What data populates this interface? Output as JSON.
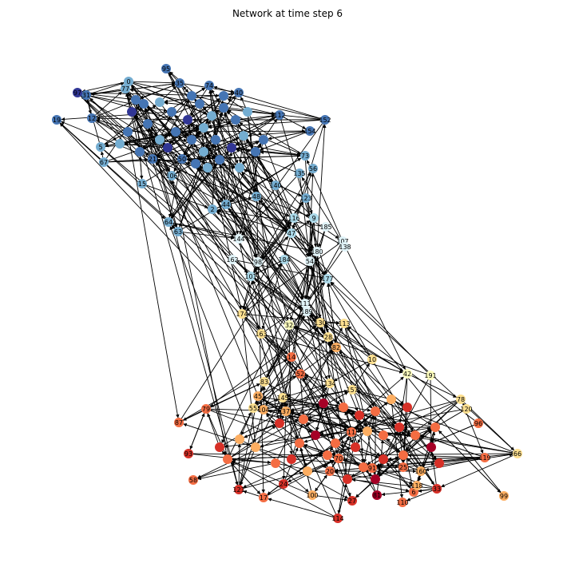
{
  "title": "Network at time step 6",
  "colors": {
    "edge": "#000000",
    "node_label": "#000000",
    "palette": [
      "#313695",
      "#4575b4",
      "#74add1",
      "#abd9e9",
      "#e0f3f8",
      "#ffffbf",
      "#fee090",
      "#fdae61",
      "#f46d43",
      "#d73027",
      "#a50026"
    ]
  },
  "nodes": [
    {
      "id": "0",
      "c": 2
    },
    {
      "id": "95",
      "c": 1
    },
    {
      "id": "35",
      "c": 1
    },
    {
      "id": "74",
      "c": 1
    },
    {
      "id": "40",
      "c": 1
    },
    {
      "id": "31",
      "c": 1
    },
    {
      "id": "97",
      "c": 0
    },
    {
      "id": "77",
      "c": 2
    },
    {
      "id": "19",
      "c": 1
    },
    {
      "id": "12",
      "c": 1
    },
    {
      "id": "112",
      "c": 1
    },
    {
      "id": "152",
      "c": 1
    },
    {
      "id": "154",
      "c": 1
    },
    {
      "id": "5",
      "c": 2
    },
    {
      "id": "67",
      "c": 2
    },
    {
      "id": "15",
      "c": 2
    },
    {
      "id": "21",
      "c": 1
    },
    {
      "id": "50",
      "c": 1
    },
    {
      "id": "106",
      "c": 2
    },
    {
      "id": "56",
      "c": 2
    },
    {
      "id": "73",
      "c": 2
    },
    {
      "id": "123",
      "c": 2
    },
    {
      "id": "135",
      "c": 2
    },
    {
      "id": "140",
      "c": 2
    },
    {
      "id": "64",
      "c": 2
    },
    {
      "id": "63",
      "c": 2
    },
    {
      "id": "2",
      "c": 2
    },
    {
      "id": "44",
      "c": 2
    },
    {
      "id": "48",
      "c": 2
    },
    {
      "id": "9",
      "c": 3
    },
    {
      "id": "116",
      "c": 3
    },
    {
      "id": "185",
      "c": 4
    },
    {
      "id": "107",
      "c": 4
    },
    {
      "id": "138",
      "c": 4
    },
    {
      "id": "47",
      "c": 3
    },
    {
      "id": "144",
      "c": 4
    },
    {
      "id": "162",
      "c": 4
    },
    {
      "id": "98",
      "c": 4
    },
    {
      "id": "180",
      "c": 4
    },
    {
      "id": "184",
      "c": 3
    },
    {
      "id": "54",
      "c": 4
    },
    {
      "id": "101",
      "c": 3
    },
    {
      "id": "111",
      "c": 4
    },
    {
      "id": "177",
      "c": 3
    },
    {
      "id": "189",
      "c": 4
    },
    {
      "id": "174",
      "c": 6
    },
    {
      "id": "163",
      "c": 6
    },
    {
      "id": "32",
      "c": 5
    },
    {
      "id": "130",
      "c": 6
    },
    {
      "id": "113",
      "c": 6
    },
    {
      "id": "28",
      "c": 6
    },
    {
      "id": "82",
      "c": 7
    },
    {
      "id": "14",
      "c": 8
    },
    {
      "id": "52",
      "c": 8
    },
    {
      "id": "10",
      "c": 6
    },
    {
      "id": "42",
      "c": 5
    },
    {
      "id": "191",
      "c": 5
    },
    {
      "id": "83",
      "c": 6
    },
    {
      "id": "134",
      "c": 6
    },
    {
      "id": "157",
      "c": 6
    },
    {
      "id": "45",
      "c": 7
    },
    {
      "id": "55",
      "c": 6
    },
    {
      "id": "104",
      "c": 7
    },
    {
      "id": "145",
      "c": 6
    },
    {
      "id": "37",
      "c": 7
    },
    {
      "id": "78",
      "c": 6
    },
    {
      "id": "120",
      "c": 6
    },
    {
      "id": "96",
      "c": 8
    },
    {
      "id": "66",
      "c": 6
    },
    {
      "id": "79",
      "c": 8
    },
    {
      "id": "87",
      "c": 8
    },
    {
      "id": "58",
      "c": 8
    },
    {
      "id": "93",
      "c": 9
    },
    {
      "id": "121",
      "c": 9
    },
    {
      "id": "114",
      "c": 9
    },
    {
      "id": "99",
      "c": 7
    },
    {
      "id": "119",
      "c": 8
    },
    {
      "id": "6",
      "c": 8
    },
    {
      "id": "17",
      "c": 8
    },
    {
      "id": "24",
      "c": 9
    },
    {
      "id": "100",
      "c": 7
    },
    {
      "id": "27",
      "c": 9
    },
    {
      "id": "81",
      "c": 10
    },
    {
      "id": "110",
      "c": 8
    },
    {
      "id": "11",
      "c": 8
    },
    {
      "id": "20",
      "c": 8
    },
    {
      "id": "70",
      "c": 8
    },
    {
      "id": "91",
      "c": 8
    },
    {
      "id": "160",
      "c": 7
    },
    {
      "id": "118",
      "c": 7
    },
    {
      "id": "25",
      "c": 8
    },
    {
      "id": "33",
      "c": 9
    }
  ],
  "hub_nodes": [
    {
      "c": 1
    },
    {
      "c": 0
    },
    {
      "c": 1
    },
    {
      "c": 2
    },
    {
      "c": 1
    },
    {
      "c": 0
    },
    {
      "c": 1
    },
    {
      "c": 2
    },
    {
      "c": 1
    },
    {
      "c": 1
    },
    {
      "c": 2
    },
    {
      "c": 0
    },
    {
      "c": 1
    },
    {
      "c": 2
    },
    {
      "c": 1
    },
    {
      "c": 1
    },
    {
      "c": 2
    },
    {
      "c": 1
    },
    {
      "c": 1
    },
    {
      "c": 2
    },
    {
      "c": 1
    },
    {
      "c": 0
    },
    {
      "c": 1
    },
    {
      "c": 2
    },
    {
      "c": 1
    },
    {
      "c": 2
    },
    {
      "c": 1
    },
    {
      "c": 1
    },
    {
      "c": 2
    },
    {
      "c": 1
    },
    {
      "c": 1
    },
    {
      "c": 2
    },
    {
      "c": 9
    },
    {
      "c": 8
    },
    {
      "c": 10
    },
    {
      "c": 8
    },
    {
      "c": 9
    },
    {
      "c": 7
    },
    {
      "c": 8
    },
    {
      "c": 9
    },
    {
      "c": 8
    },
    {
      "c": 10
    },
    {
      "c": 8
    },
    {
      "c": 9
    },
    {
      "c": 7
    },
    {
      "c": 8
    },
    {
      "c": 9
    },
    {
      "c": 8
    },
    {
      "c": 10
    },
    {
      "c": 8
    },
    {
      "c": 9
    },
    {
      "c": 7
    },
    {
      "c": 8
    },
    {
      "c": 9
    },
    {
      "c": 8
    },
    {
      "c": 9
    },
    {
      "c": 8
    },
    {
      "c": 10
    },
    {
      "c": 7
    },
    {
      "c": 8
    },
    {
      "c": 9
    },
    {
      "c": 8
    },
    {
      "c": 7
    },
    {
      "c": 9
    }
  ]
}
